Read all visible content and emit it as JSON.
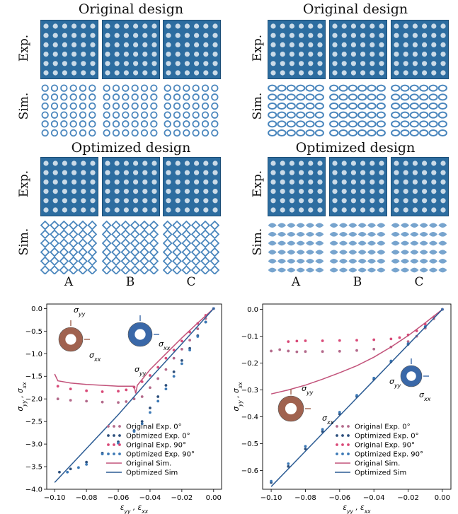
{
  "panels": [
    {
      "original_title": "Original design",
      "optimized_title": "Optimized design",
      "exp_label": "Exp.",
      "sim_label": "Sim.",
      "columns": [
        "A",
        "B",
        "C"
      ]
    },
    {
      "original_title": "Original design",
      "optimized_title": "Optimized design",
      "exp_label": "Exp.",
      "sim_label": "Sim.",
      "columns": [
        "A",
        "B",
        "C"
      ]
    }
  ],
  "colors": {
    "original": "#c2527a",
    "original_dark": "#b36a8b",
    "optimized_dark": "#2c4f7c",
    "optimized": "#3b78b5",
    "photo_blue": "#2d6da0",
    "pattern": "#4a86bd"
  },
  "chart_data": [
    {
      "type": "scatter",
      "xlabel": "ε_yy , ε_xx",
      "ylabel": "σ_yy , σ_xx",
      "xlim": [
        -0.105,
        0.005
      ],
      "ylim": [
        -4.0,
        0.1
      ],
      "xticks": [
        "−0.10",
        "−0.08",
        "−0.06",
        "−0.04",
        "−0.02",
        "0.00"
      ],
      "yticks": [
        "0.0",
        "−0.5",
        "−1.0",
        "−1.5",
        "−2.0",
        "−2.5",
        "−3.0",
        "−3.5",
        "−4.0"
      ],
      "xtick_values": [
        -0.1,
        -0.08,
        -0.06,
        -0.04,
        -0.02,
        0.0
      ],
      "ytick_values": [
        0.0,
        -0.5,
        -1.0,
        -1.5,
        -2.0,
        -2.5,
        -3.0,
        -3.5,
        -4.0
      ],
      "annotations": [
        "σ_yy",
        "σ_xx",
        "σ_yy",
        "σ_xx"
      ],
      "legend": [
        {
          "name": "Original Exp. 0°",
          "style": "dots",
          "color": "#b36a8b"
        },
        {
          "name": "Optimized Exp. 0°",
          "style": "dots",
          "color": "#2c4f7c"
        },
        {
          "name": "Original Exp. 90°",
          "style": "dots",
          "color": "#d94a78"
        },
        {
          "name": "Optimized Exp. 90°",
          "style": "dots",
          "color": "#3b78b5"
        },
        {
          "name": "Original Sim.",
          "style": "line",
          "color": "#c2527a"
        },
        {
          "name": "Optimized Sim",
          "style": "line",
          "color": "#2c5c94"
        }
      ],
      "series": [
        {
          "x": [
            -0.098,
            -0.09,
            -0.08,
            -0.07,
            -0.06,
            -0.055,
            -0.05,
            -0.045,
            -0.04,
            -0.035,
            -0.03,
            -0.025,
            -0.02,
            -0.015,
            -0.01,
            -0.005,
            0.0
          ],
          "y": [
            -2.0,
            -2.03,
            -2.05,
            -2.07,
            -2.08,
            -2.06,
            -2.0,
            -1.95,
            -1.75,
            -1.55,
            -1.35,
            -1.1,
            -0.9,
            -0.7,
            -0.45,
            -0.22,
            0.0
          ]
        },
        {
          "x": [
            -0.097,
            -0.09,
            -0.08,
            -0.07,
            -0.06,
            -0.05,
            -0.045,
            -0.04,
            -0.035,
            -0.03,
            -0.025,
            -0.02,
            -0.015,
            -0.01,
            -0.005,
            0.0
          ],
          "y": [
            -3.62,
            -3.55,
            -3.4,
            -3.2,
            -2.95,
            -2.7,
            -2.5,
            -2.2,
            -1.95,
            -1.7,
            -1.4,
            -1.15,
            -0.88,
            -0.6,
            -0.3,
            0.0
          ]
        },
        {
          "x": [
            -0.098,
            -0.09,
            -0.08,
            -0.07,
            -0.06,
            -0.055,
            -0.05,
            -0.045,
            -0.04,
            -0.035,
            -0.03,
            -0.025,
            -0.02,
            -0.015,
            -0.01,
            -0.005,
            0.0
          ],
          "y": [
            -1.72,
            -1.78,
            -1.82,
            -1.84,
            -1.83,
            -1.8,
            -1.74,
            -1.62,
            -1.48,
            -1.3,
            -1.1,
            -0.92,
            -0.72,
            -0.52,
            -0.33,
            -0.15,
            0.0
          ]
        },
        {
          "x": [
            -0.092,
            -0.085,
            -0.08,
            -0.07,
            -0.06,
            -0.05,
            -0.045,
            -0.04,
            -0.035,
            -0.03,
            -0.025,
            -0.02,
            -0.015,
            -0.01,
            -0.005,
            0.0
          ],
          "y": [
            -3.62,
            -3.52,
            -3.45,
            -3.22,
            -2.98,
            -2.72,
            -2.55,
            -2.3,
            -2.05,
            -1.78,
            -1.5,
            -1.22,
            -0.92,
            -0.62,
            -0.3,
            0.0
          ]
        },
        {
          "x": [
            -0.1,
            -0.098,
            -0.09,
            -0.08,
            -0.07,
            -0.06,
            -0.05,
            -0.049,
            -0.048,
            -0.04,
            -0.03,
            -0.02,
            -0.01,
            0.0
          ],
          "y": [
            -1.45,
            -1.6,
            -1.65,
            -1.68,
            -1.7,
            -1.72,
            -1.72,
            -1.88,
            -1.7,
            -1.35,
            -1.0,
            -0.65,
            -0.32,
            0.0
          ]
        },
        {
          "x": [
            -0.1,
            -0.08,
            -0.06,
            -0.04,
            -0.02,
            0.0
          ],
          "y": [
            -3.85,
            -3.1,
            -2.35,
            -1.55,
            -0.78,
            0.0
          ]
        }
      ]
    },
    {
      "type": "scatter",
      "xlabel": "ε_yy , ε_xx",
      "ylabel": "σ_yy , σ_xx",
      "xlim": [
        -0.105,
        0.005
      ],
      "ylim": [
        -0.67,
        0.02
      ],
      "xticks": [
        "−0.10",
        "−0.08",
        "−0.06",
        "−0.04",
        "−0.02",
        "0.00"
      ],
      "yticks": [
        "0.0",
        "−0.1",
        "−0.2",
        "−0.3",
        "−0.4",
        "−0.5",
        "−0.6"
      ],
      "xtick_values": [
        -0.1,
        -0.08,
        -0.06,
        -0.04,
        -0.02,
        0.0
      ],
      "ytick_values": [
        0.0,
        -0.1,
        -0.2,
        -0.3,
        -0.4,
        -0.5,
        -0.6
      ],
      "annotations": [
        "σ_yy",
        "σ_xx",
        "σ_yy",
        "σ_xx"
      ],
      "legend": [
        {
          "name": "Original Exp. 0°",
          "style": "dots",
          "color": "#b36a8b"
        },
        {
          "name": "Optimized Exp. 0°",
          "style": "dots",
          "color": "#2c4f7c"
        },
        {
          "name": "Original Exp. 90°",
          "style": "dots",
          "color": "#d94a78"
        },
        {
          "name": "Optimized Exp. 90°",
          "style": "dots",
          "color": "#3b78b5"
        },
        {
          "name": "Original Sim.",
          "style": "line",
          "color": "#c2527a"
        },
        {
          "name": "Optimized Sim",
          "style": "line",
          "color": "#2c5c94"
        }
      ],
      "series": [
        {
          "x": [
            -0.1,
            -0.095,
            -0.09,
            -0.085,
            -0.08,
            -0.07,
            -0.06,
            -0.05,
            -0.04,
            -0.03,
            -0.02,
            -0.015,
            -0.01,
            -0.005,
            0.0
          ],
          "y": [
            -0.155,
            -0.15,
            -0.155,
            -0.158,
            -0.157,
            -0.157,
            -0.156,
            -0.153,
            -0.148,
            -0.14,
            -0.12,
            -0.1,
            -0.07,
            -0.035,
            0.0
          ]
        },
        {
          "x": [
            -0.1,
            -0.09,
            -0.08,
            -0.07,
            -0.06,
            -0.05,
            -0.04,
            -0.03,
            -0.02,
            -0.01,
            0.0
          ],
          "y": [
            -0.645,
            -0.585,
            -0.52,
            -0.455,
            -0.39,
            -0.325,
            -0.26,
            -0.195,
            -0.13,
            -0.065,
            0.0
          ]
        },
        {
          "x": [
            -0.09,
            -0.085,
            -0.08,
            -0.07,
            -0.06,
            -0.05,
            -0.04,
            -0.03,
            -0.025,
            -0.02,
            -0.015,
            -0.01,
            -0.005,
            0.0
          ],
          "y": [
            -0.12,
            -0.118,
            -0.117,
            -0.117,
            -0.116,
            -0.115,
            -0.113,
            -0.11,
            -0.105,
            -0.095,
            -0.08,
            -0.055,
            -0.028,
            0.0
          ]
        },
        {
          "x": [
            -0.1,
            -0.09,
            -0.08,
            -0.07,
            -0.06,
            -0.05,
            -0.04,
            -0.03,
            -0.02,
            -0.01,
            0.0
          ],
          "y": [
            -0.64,
            -0.575,
            -0.51,
            -0.447,
            -0.383,
            -0.32,
            -0.256,
            -0.192,
            -0.128,
            -0.064,
            0.0
          ]
        },
        {
          "x": [
            -0.1,
            -0.09,
            -0.08,
            -0.07,
            -0.06,
            -0.05,
            -0.04,
            -0.03,
            -0.02,
            -0.01,
            0.0
          ],
          "y": [
            -0.315,
            -0.3,
            -0.282,
            -0.26,
            -0.236,
            -0.21,
            -0.178,
            -0.14,
            -0.098,
            -0.05,
            0.0
          ]
        },
        {
          "x": [
            -0.1,
            -0.08,
            -0.06,
            -0.04,
            -0.02,
            0.0
          ],
          "y": [
            -0.66,
            -0.528,
            -0.396,
            -0.264,
            -0.132,
            0.0
          ]
        }
      ]
    }
  ]
}
